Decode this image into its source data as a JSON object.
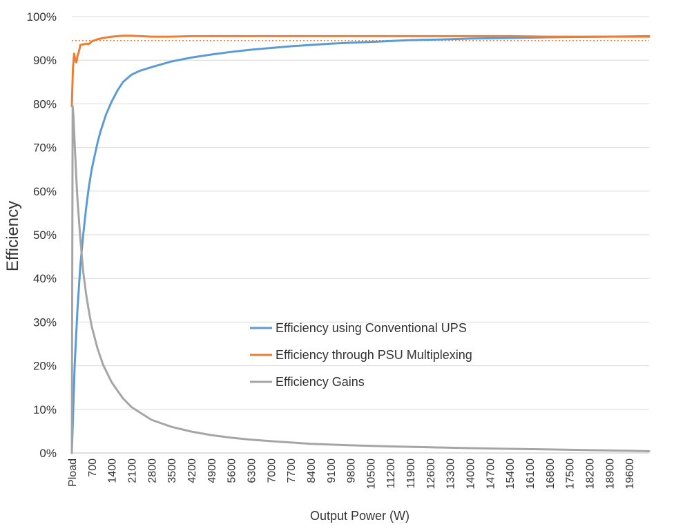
{
  "chart_data": {
    "type": "line",
    "title": "",
    "xlabel": "Output Power (W)",
    "ylabel": "Efficiency",
    "ylim": [
      0,
      100
    ],
    "xlim": [
      0,
      20300
    ],
    "y_ticks": [
      "0%",
      "10%",
      "20%",
      "30%",
      "40%",
      "50%",
      "60%",
      "70%",
      "80%",
      "90%",
      "100%"
    ],
    "x_ticks": [
      {
        "label": "Pload",
        "x": 0
      },
      {
        "label": "700",
        "x": 700
      },
      {
        "label": "1400",
        "x": 1400
      },
      {
        "label": "2100",
        "x": 2100
      },
      {
        "label": "2800",
        "x": 2800
      },
      {
        "label": "3500",
        "x": 3500
      },
      {
        "label": "4200",
        "x": 4200
      },
      {
        "label": "4900",
        "x": 4900
      },
      {
        "label": "5600",
        "x": 5600
      },
      {
        "label": "6300",
        "x": 6300
      },
      {
        "label": "7000",
        "x": 7000
      },
      {
        "label": "7700",
        "x": 7700
      },
      {
        "label": "8400",
        "x": 8400
      },
      {
        "label": "9100",
        "x": 9100
      },
      {
        "label": "9800",
        "x": 9800
      },
      {
        "label": "10500",
        "x": 10500
      },
      {
        "label": "11200",
        "x": 11200
      },
      {
        "label": "11900",
        "x": 11900
      },
      {
        "label": "12600",
        "x": 12600
      },
      {
        "label": "13300",
        "x": 13300
      },
      {
        "label": "14000",
        "x": 14000
      },
      {
        "label": "14700",
        "x": 14700
      },
      {
        "label": "15400",
        "x": 15400
      },
      {
        "label": "16100",
        "x": 16100
      },
      {
        "label": "16800",
        "x": 16800
      },
      {
        "label": "17500",
        "x": 17500
      },
      {
        "label": "18200",
        "x": 18200
      },
      {
        "label": "18900",
        "x": 18900
      },
      {
        "label": "19600",
        "x": 19600
      }
    ],
    "reference_line": {
      "y": 94.5,
      "style": "dotted",
      "color": "#ed7d31"
    },
    "legend_position": "center-right",
    "series": [
      {
        "name": "Efficiency using Conventional UPS",
        "color": "#5b9bd5",
        "x": [
          0,
          100,
          200,
          300,
          400,
          500,
          600,
          700,
          800,
          900,
          1000,
          1200,
          1400,
          1600,
          1800,
          2100,
          2400,
          2800,
          3500,
          4200,
          4900,
          5600,
          6300,
          7000,
          7700,
          8400,
          9100,
          9800,
          10500,
          11200,
          11900,
          12600,
          13300,
          14000,
          15400,
          16800,
          18200,
          19600,
          20300
        ],
        "values": [
          0,
          20,
          33,
          43,
          50,
          56,
          61,
          65,
          68,
          71,
          73.5,
          77.5,
          80.5,
          83,
          85,
          86.7,
          87.6,
          88.4,
          89.7,
          90.6,
          91.3,
          91.9,
          92.4,
          92.8,
          93.2,
          93.5,
          93.8,
          94.0,
          94.2,
          94.4,
          94.6,
          94.7,
          94.8,
          94.95,
          95.1,
          95.25,
          95.35,
          95.45,
          95.5
        ]
      },
      {
        "name": "Efficiency through PSU Multiplexing",
        "color": "#ed7d31",
        "x": [
          0,
          40,
          80,
          120,
          160,
          200,
          250,
          300,
          400,
          500,
          600,
          700,
          900,
          1100,
          1400,
          1800,
          2100,
          2800,
          3500,
          4200,
          5600,
          7000,
          8400,
          9800,
          11200,
          12600,
          14000,
          15400,
          16800,
          18200,
          19600,
          20300
        ],
        "values": [
          79.5,
          88,
          91.5,
          90,
          89.5,
          91,
          92,
          93.5,
          93.6,
          93.8,
          93.7,
          94.3,
          94.8,
          95.1,
          95.4,
          95.6,
          95.6,
          95.4,
          95.4,
          95.5,
          95.5,
          95.5,
          95.5,
          95.5,
          95.5,
          95.5,
          95.5,
          95.5,
          95.4,
          95.4,
          95.4,
          95.4
        ]
      },
      {
        "name": "Efficiency Gains",
        "color": "#a5a5a5",
        "x": [
          0,
          30,
          60,
          100,
          150,
          200,
          300,
          400,
          500,
          600,
          700,
          900,
          1100,
          1400,
          1800,
          2100,
          2800,
          3500,
          4200,
          4900,
          5600,
          6300,
          7000,
          8400,
          9800,
          11200,
          12600,
          14000,
          15400,
          16800,
          18200,
          19600,
          20300
        ],
        "values": [
          0,
          79.5,
          77,
          71,
          64,
          58,
          49,
          41.5,
          36.5,
          32.5,
          29,
          24,
          20.2,
          16.2,
          12.5,
          10.5,
          7.6,
          6.0,
          4.9,
          4.1,
          3.5,
          3.05,
          2.7,
          2.1,
          1.75,
          1.5,
          1.3,
          1.1,
          0.95,
          0.8,
          0.65,
          0.5,
          0.4
        ]
      }
    ]
  }
}
